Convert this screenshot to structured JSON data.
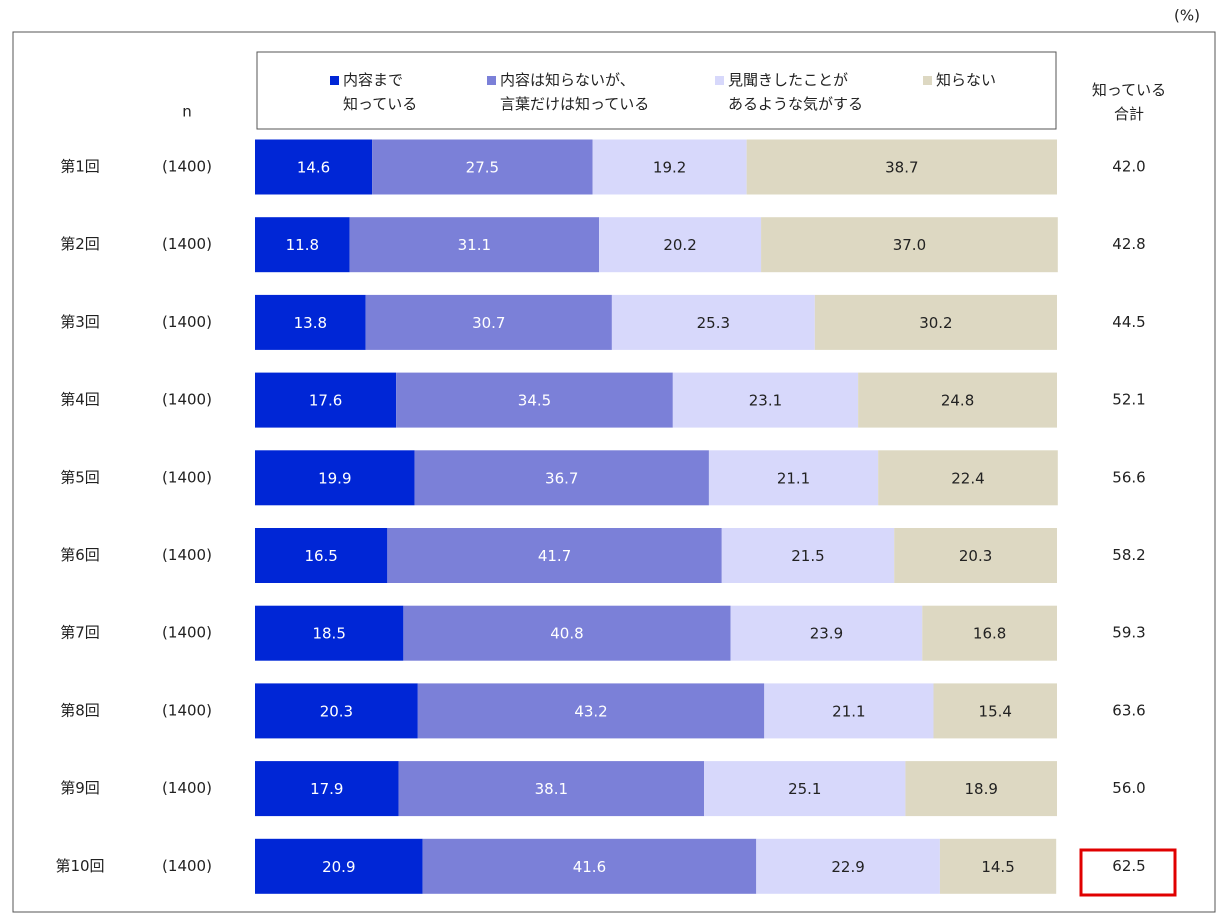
{
  "chart_data": {
    "type": "stacked-bar-horizontal",
    "unit": "(%)",
    "categories": [
      "第1回",
      "第2回",
      "第3回",
      "第4回",
      "第5回",
      "第6回",
      "第7回",
      "第8回",
      "第9回",
      "第10回"
    ],
    "n": {
      "header": "n",
      "values": [
        "(1400)",
        "(1400)",
        "(1400)",
        "(1400)",
        "(1400)",
        "(1400)",
        "(1400)",
        "(1400)",
        "(1400)",
        "(1400)"
      ]
    },
    "xlim": [
      0,
      100
    ],
    "series": [
      {
        "name": "内容まで\n知っている",
        "color": "#0026d6",
        "label_color": "#ffffff",
        "values": [
          14.6,
          11.8,
          13.8,
          17.6,
          19.9,
          16.5,
          18.5,
          20.3,
          17.9,
          20.9
        ]
      },
      {
        "name": "内容は知らないが、\n言葉だけは知っている",
        "color": "#7b80d8",
        "label_color": "#ffffff",
        "values": [
          27.5,
          31.1,
          30.7,
          34.5,
          36.7,
          41.7,
          40.8,
          43.2,
          38.1,
          41.6
        ]
      },
      {
        "name": "見聞きしたことが\nあるような気がする",
        "color": "#d7d8fb",
        "label_color": "#222222",
        "values": [
          19.2,
          20.2,
          25.3,
          23.1,
          21.1,
          21.5,
          23.9,
          21.1,
          25.1,
          22.9
        ]
      },
      {
        "name": "知らない",
        "color": "#ddd8c2",
        "label_color": "#222222",
        "values": [
          38.7,
          37.0,
          30.2,
          24.8,
          22.4,
          20.3,
          16.8,
          15.4,
          18.9,
          14.5
        ],
        "value_labels": [
          "38.7",
          "37.0",
          "30.2",
          "24.8",
          "22.4",
          "20.3",
          "16.8",
          "15.4",
          "18.9",
          "14.5"
        ]
      }
    ],
    "totals": {
      "header": "知っている\n合計",
      "values": [
        42.0,
        42.8,
        44.5,
        52.1,
        56.6,
        58.2,
        59.3,
        63.6,
        56.0,
        62.5
      ],
      "value_labels": [
        "42.0",
        "42.8",
        "44.5",
        "52.1",
        "56.6",
        "58.2",
        "59.3",
        "63.6",
        "56.0",
        "62.5"
      ]
    }
  }
}
